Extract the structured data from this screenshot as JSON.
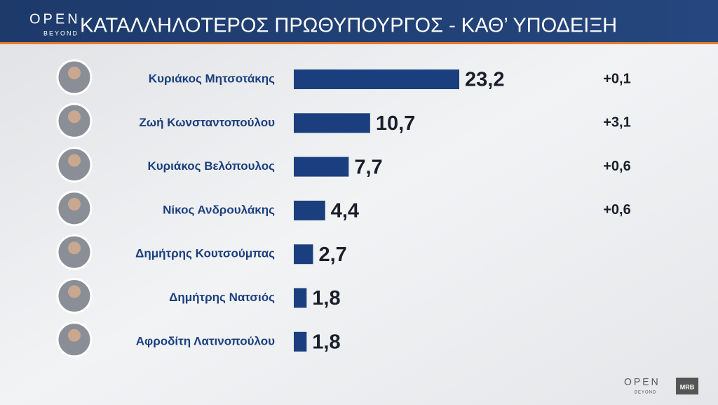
{
  "chart_data": {
    "type": "hbar",
    "title": "ΚΑΤΑΛΛΗΛΟΤΕΡΟΣ ΠΡΩΘΥΠΟΥΡΓΟΣ - ΚΑΘ’ ΥΠΟΔΕΙΞΗ",
    "categories": [
      "Κυριάκος Μητσοτάκης",
      "Ζωή Κωνσταντοπούλου",
      "Κυριάκος Βελόπουλος",
      "Νίκος Ανδρουλάκης",
      "Δημήτρης Κουτσούμπας",
      "Δημήτρης Νατσιός",
      "Αφροδίτη Λατινοπούλου"
    ],
    "values": [
      23.2,
      10.7,
      7.7,
      4.4,
      2.7,
      1.8,
      1.8
    ],
    "value_labels": [
      "23,2",
      "10,7",
      "7,7",
      "4,4",
      "2,7",
      "1,8",
      "1,8"
    ],
    "changes": [
      "+0,1",
      "+3,1",
      "+0,6",
      "+0,6"
    ],
    "color": "#1b3f7e"
  },
  "logo": {
    "name": "OPEN",
    "tagline": "BEYOND"
  },
  "pollster": "MRB"
}
